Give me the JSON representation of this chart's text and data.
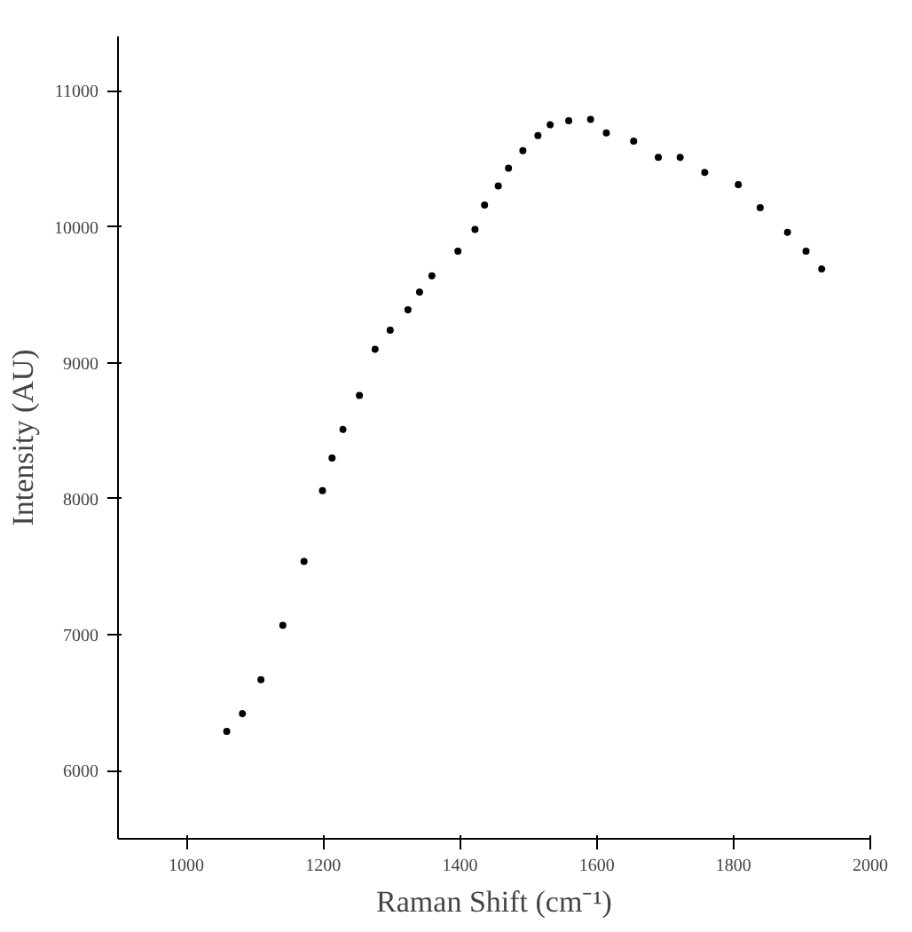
{
  "chart_data": {
    "type": "scatter",
    "xlabel": "Raman Shift (cm⁻¹)",
    "ylabel": "Intensity (AU)",
    "xlim": [
      900,
      2000
    ],
    "xticks": [
      1000,
      1200,
      1400,
      1600,
      1800,
      2000
    ],
    "ylim": [
      5500,
      11400
    ],
    "yticks": [
      6000,
      7000,
      8000,
      9000,
      10000,
      11000
    ],
    "grid": false,
    "marker": "circle",
    "x": [
      1059,
      1082,
      1109,
      1141,
      1172,
      1199,
      1213,
      1229,
      1253,
      1276,
      1298,
      1324,
      1341,
      1359,
      1397,
      1422,
      1436,
      1456,
      1471,
      1492,
      1514,
      1532,
      1559,
      1591,
      1614,
      1654,
      1690,
      1722,
      1758,
      1807,
      1839,
      1879,
      1906,
      1929
    ],
    "series": [
      {
        "color": "#000000",
        "values": [
          6290,
          6420,
          6670,
          7070,
          7540,
          8060,
          8300,
          8510,
          8760,
          9100,
          9240,
          9390,
          9520,
          9640,
          9820,
          9980,
          10160,
          10300,
          10430,
          10560,
          10670,
          10750,
          10780,
          10790,
          10690,
          10630,
          10510,
          10510,
          10400,
          10310,
          10140,
          9960,
          9820,
          9690
        ]
      }
    ]
  }
}
